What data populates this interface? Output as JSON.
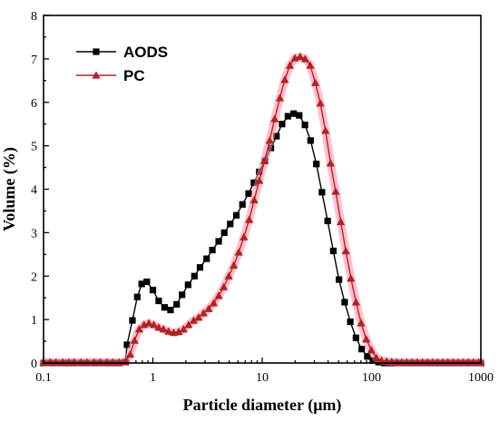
{
  "chart_data": {
    "type": "line",
    "title": "",
    "xlabel": "Particle diameter (μm)",
    "ylabel": "Volume (%)",
    "xscale": "log",
    "xlim": [
      0.1,
      1000
    ],
    "ylim": [
      0,
      8
    ],
    "x_ticks": [
      "0.1",
      "1",
      "10",
      "100",
      "1000"
    ],
    "y_ticks": [
      "0",
      "1",
      "2",
      "3",
      "4",
      "5",
      "6",
      "7",
      "8"
    ],
    "grid": false,
    "legend_position": "top-left",
    "series": [
      {
        "name": "AODS",
        "color": "#000000",
        "marker": "square",
        "points": [
          [
            0.1,
            0
          ],
          [
            0.115,
            0
          ],
          [
            0.13,
            0
          ],
          [
            0.15,
            0
          ],
          [
            0.17,
            0
          ],
          [
            0.19,
            0
          ],
          [
            0.22,
            0
          ],
          [
            0.25,
            0
          ],
          [
            0.29,
            0
          ],
          [
            0.33,
            0
          ],
          [
            0.38,
            0
          ],
          [
            0.43,
            0
          ],
          [
            0.49,
            0
          ],
          [
            0.56,
            0.02
          ],
          [
            0.58,
            0.42
          ],
          [
            0.65,
            0.98
          ],
          [
            0.72,
            1.52
          ],
          [
            0.79,
            1.82
          ],
          [
            0.88,
            1.87
          ],
          [
            1.0,
            1.68
          ],
          [
            1.13,
            1.43
          ],
          [
            1.28,
            1.28
          ],
          [
            1.45,
            1.22
          ],
          [
            1.65,
            1.35
          ],
          [
            1.85,
            1.57
          ],
          [
            2.1,
            1.8
          ],
          [
            2.4,
            2.0
          ],
          [
            2.7,
            2.2
          ],
          [
            3.1,
            2.4
          ],
          [
            3.5,
            2.6
          ],
          [
            4.0,
            2.8
          ],
          [
            4.5,
            3.0
          ],
          [
            5.1,
            3.2
          ],
          [
            5.8,
            3.4
          ],
          [
            6.6,
            3.65
          ],
          [
            7.5,
            3.9
          ],
          [
            8.4,
            4.15
          ],
          [
            9.4,
            4.4
          ],
          [
            10.6,
            4.65
          ],
          [
            12.0,
            4.95
          ],
          [
            13.5,
            5.22
          ],
          [
            15.2,
            5.5
          ],
          [
            17.2,
            5.68
          ],
          [
            19.4,
            5.74
          ],
          [
            21.8,
            5.7
          ],
          [
            24.6,
            5.48
          ],
          [
            27.7,
            5.12
          ],
          [
            31.3,
            4.58
          ],
          [
            35.2,
            3.93
          ],
          [
            39.7,
            3.27
          ],
          [
            44.7,
            2.58
          ],
          [
            50.4,
            1.92
          ],
          [
            56.8,
            1.4
          ],
          [
            64.0,
            0.95
          ],
          [
            72.1,
            0.58
          ],
          [
            81.3,
            0.32
          ],
          [
            91.6,
            0.15
          ],
          [
            103.0,
            0.06
          ],
          [
            116.0,
            0.02
          ],
          [
            131.0,
            0
          ],
          [
            148.0,
            0
          ],
          [
            167.0,
            0
          ],
          [
            188.0,
            0
          ],
          [
            212.0,
            0
          ],
          [
            239.0,
            0
          ],
          [
            269.0,
            0
          ],
          [
            303.0,
            0
          ],
          [
            342.0,
            0
          ],
          [
            385.0,
            0
          ],
          [
            434.0,
            0
          ],
          [
            489.0,
            0
          ],
          [
            551.0,
            0
          ],
          [
            621.0,
            0
          ],
          [
            700.0,
            0
          ],
          [
            789.0,
            0
          ],
          [
            889.0,
            0
          ],
          [
            1000.0,
            0
          ]
        ]
      },
      {
        "name": "PC",
        "color": "#b22222",
        "marker": "triangle",
        "points": [
          [
            0.1,
            0.02
          ],
          [
            0.115,
            0.02
          ],
          [
            0.13,
            0.02
          ],
          [
            0.15,
            0.02
          ],
          [
            0.17,
            0.02
          ],
          [
            0.19,
            0.02
          ],
          [
            0.22,
            0.02
          ],
          [
            0.25,
            0.02
          ],
          [
            0.29,
            0.02
          ],
          [
            0.33,
            0.02
          ],
          [
            0.38,
            0.02
          ],
          [
            0.43,
            0.02
          ],
          [
            0.49,
            0.02
          ],
          [
            0.56,
            0.03
          ],
          [
            0.62,
            0.2
          ],
          [
            0.68,
            0.52
          ],
          [
            0.75,
            0.78
          ],
          [
            0.83,
            0.88
          ],
          [
            0.92,
            0.92
          ],
          [
            1.02,
            0.88
          ],
          [
            1.13,
            0.82
          ],
          [
            1.25,
            0.78
          ],
          [
            1.39,
            0.73
          ],
          [
            1.55,
            0.7
          ],
          [
            1.72,
            0.72
          ],
          [
            1.91,
            0.78
          ],
          [
            2.12,
            0.88
          ],
          [
            2.36,
            0.98
          ],
          [
            2.62,
            1.05
          ],
          [
            2.91,
            1.15
          ],
          [
            3.24,
            1.25
          ],
          [
            3.6,
            1.38
          ],
          [
            4.0,
            1.55
          ],
          [
            4.45,
            1.75
          ],
          [
            4.95,
            2.0
          ],
          [
            5.5,
            2.25
          ],
          [
            6.1,
            2.55
          ],
          [
            6.8,
            2.9
          ],
          [
            7.6,
            3.3
          ],
          [
            8.45,
            3.75
          ],
          [
            9.4,
            4.2
          ],
          [
            10.5,
            4.65
          ],
          [
            11.7,
            5.12
          ],
          [
            13.0,
            5.62
          ],
          [
            14.5,
            6.1
          ],
          [
            16.1,
            6.52
          ],
          [
            17.9,
            6.85
          ],
          [
            19.9,
            7.02
          ],
          [
            22.2,
            7.05
          ],
          [
            24.7,
            7.0
          ],
          [
            27.5,
            6.85
          ],
          [
            30.6,
            6.45
          ],
          [
            34.0,
            5.98
          ],
          [
            37.9,
            5.35
          ],
          [
            42.2,
            4.6
          ],
          [
            47.0,
            3.95
          ],
          [
            52.3,
            3.25
          ],
          [
            58.2,
            2.58
          ],
          [
            64.8,
            1.95
          ],
          [
            72.1,
            1.4
          ],
          [
            80.3,
            0.92
          ],
          [
            89.4,
            0.55
          ],
          [
            99.5,
            0.3
          ],
          [
            110.8,
            0.12
          ],
          [
            123.3,
            0.06
          ],
          [
            137.3,
            0.04
          ],
          [
            152.9,
            0.03
          ],
          [
            170.0,
            0.02
          ],
          [
            189.0,
            0.02
          ],
          [
            210.0,
            0.02
          ],
          [
            235.0,
            0.02
          ],
          [
            262.0,
            0.02
          ],
          [
            292.0,
            0.02
          ],
          [
            325.0,
            0.02
          ],
          [
            362.0,
            0.02
          ],
          [
            403.0,
            0.02
          ],
          [
            449.0,
            0.02
          ],
          [
            500.0,
            0.02
          ],
          [
            557.0,
            0.02
          ],
          [
            620.0,
            0.02
          ],
          [
            690.0,
            0.02
          ],
          [
            769.0,
            0.02
          ],
          [
            856.0,
            0.02
          ],
          [
            953.0,
            0.02
          ],
          [
            1000.0,
            0.02
          ]
        ]
      }
    ]
  }
}
